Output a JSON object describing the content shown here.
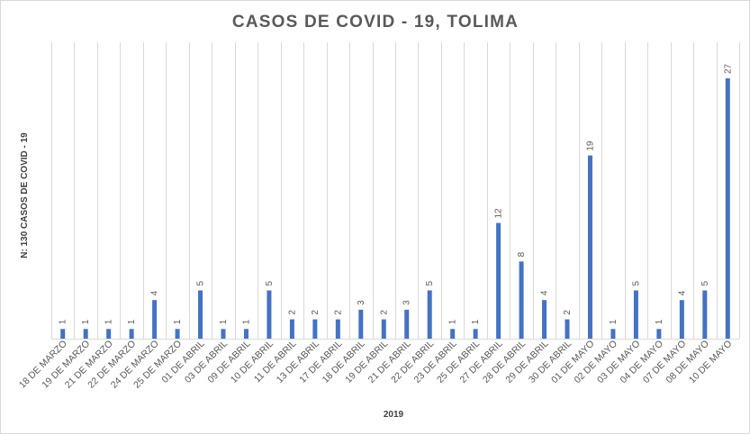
{
  "chart_data": {
    "type": "bar",
    "title": "CASOS DE COVID - 19, TOLIMA",
    "xlabel": "2019",
    "ylabel": "N: 130 CASOS DE COVID - 19",
    "categories": [
      "18 DE MARZO",
      "19 DE MARZO",
      "21 DE MARZO",
      "22 DE MARZO",
      "24 DE MARZO",
      "25 DE MARZO",
      "01 DE ABRIL",
      "03 DE ABRIL",
      "09 DE ABRIL",
      "10 DE ABRIL",
      "11 DE ABRIL",
      "13 DE ABRIL",
      "17 DE ABRIL",
      "18 DE ABRIL",
      "19 DE ABRIL",
      "21 DE ABRIL",
      "22 DE ABRIL",
      "23 DE ABRIL",
      "25 DE ABRIL",
      "27 DE ABRIL",
      "28 DE ABRIL",
      "29 DE ABRIL",
      "30 DE ABRIL",
      "01 DE MAYO",
      "02 DE MAYO",
      "03 DE MAYO",
      "04 DE MAYO",
      "07 DE MAYO",
      "08 DE MAYO",
      "10 DE MAYO"
    ],
    "values": [
      1,
      1,
      1,
      1,
      4,
      1,
      5,
      1,
      1,
      5,
      2,
      2,
      2,
      3,
      2,
      3,
      5,
      1,
      1,
      12,
      8,
      4,
      2,
      19,
      1,
      5,
      1,
      4,
      5,
      27
    ],
    "ylim": [
      0,
      27
    ],
    "grid": "vertical",
    "legend": "none",
    "bar_color": "#4472c4",
    "grid_color": "#d9d9d9"
  }
}
